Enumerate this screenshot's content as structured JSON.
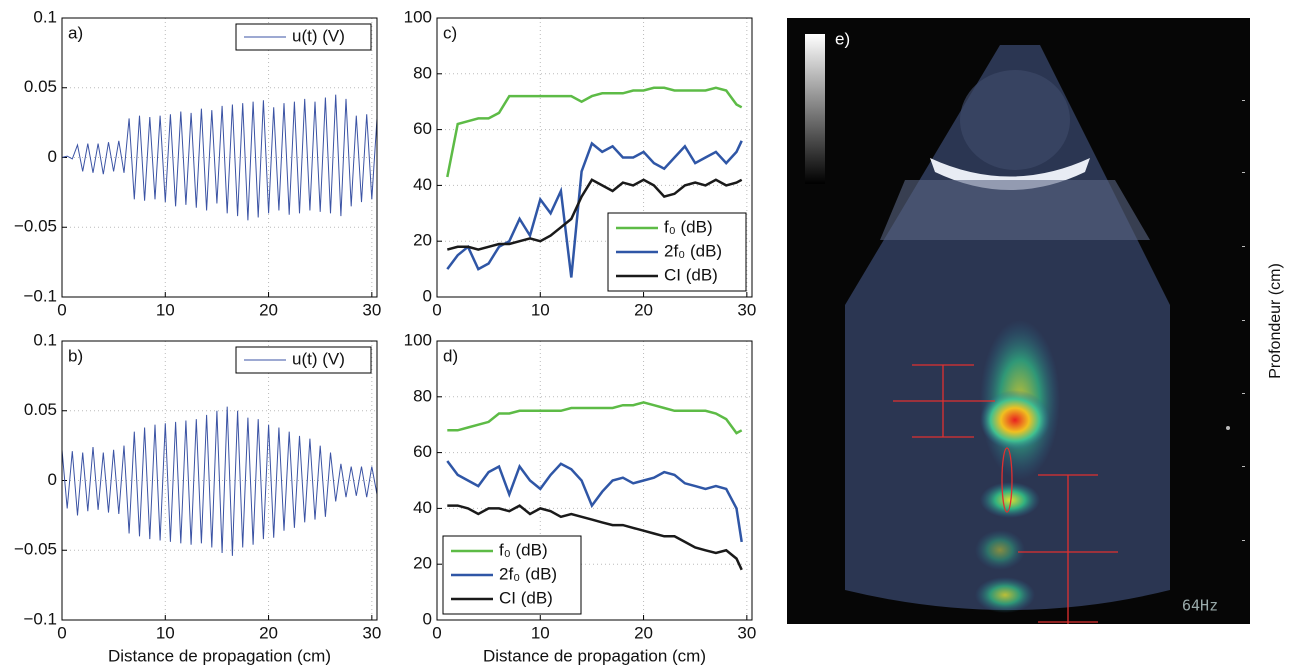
{
  "chart_data": [
    {
      "type": "line",
      "label": "a)",
      "xlim": [
        0,
        30.5
      ],
      "xticks": [
        0,
        10,
        20,
        30
      ],
      "ylim": [
        -0.1,
        0.1
      ],
      "yticks": [
        {
          "value": -0.1,
          "label": "−0.1"
        },
        {
          "value": -0.05,
          "label": "−0.05"
        },
        0,
        0.05,
        0.1
      ],
      "grid": true,
      "legend": "upper right",
      "x": [
        0,
        0.5,
        1,
        1.5,
        2,
        2.5,
        3,
        3.5,
        4,
        4.5,
        5,
        5.5,
        6,
        6.5,
        7,
        7.5,
        8,
        8.5,
        9,
        9.5,
        10,
        10.5,
        11,
        11.5,
        12,
        12.5,
        13,
        13.5,
        14,
        14.5,
        15,
        15.5,
        16,
        16.5,
        17,
        17.5,
        18,
        18.5,
        19,
        19.5,
        20,
        20.5,
        21,
        21.5,
        22,
        22.5,
        23,
        23.5,
        24,
        24.5,
        25,
        25.5,
        26,
        26.5,
        27,
        27.5,
        28,
        28.5,
        29,
        29.5,
        30,
        30.5
      ],
      "series": [
        {
          "name": "u(t) (V)",
          "color": "#3b53a4",
          "values": [
            0,
            0.001,
            -0.001,
            0.009,
            -0.01,
            0.01,
            -0.011,
            0.01,
            -0.012,
            0.011,
            -0.01,
            0.012,
            -0.011,
            0.028,
            -0.03,
            0.03,
            -0.031,
            0.029,
            -0.03,
            0.03,
            -0.032,
            0.031,
            -0.035,
            0.033,
            -0.034,
            0.032,
            -0.036,
            0.035,
            -0.038,
            0.034,
            -0.033,
            0.037,
            -0.04,
            0.038,
            -0.042,
            0.039,
            -0.045,
            0.04,
            -0.043,
            0.041,
            -0.04,
            0.036,
            -0.038,
            0.039,
            -0.041,
            0.04,
            -0.04,
            0.042,
            -0.038,
            0.04,
            -0.039,
            0.043,
            -0.04,
            0.045,
            -0.042,
            0.042,
            -0.035,
            0.03,
            -0.032,
            0.031,
            -0.03,
            0.028
          ]
        }
      ]
    },
    {
      "type": "line",
      "label": "b)",
      "xlabel": "Distance de propagation (cm)",
      "xlim": [
        0,
        30.5
      ],
      "xticks": [
        0,
        10,
        20,
        30
      ],
      "ylim": [
        -0.1,
        0.1
      ],
      "yticks": [
        {
          "value": -0.1,
          "label": "−0.1"
        },
        {
          "value": -0.05,
          "label": "−0.05"
        },
        0,
        0.05,
        0.1
      ],
      "grid": true,
      "legend": "upper right",
      "x": [
        0,
        0.5,
        1,
        1.5,
        2,
        2.5,
        3,
        3.5,
        4,
        4.5,
        5,
        5.5,
        6,
        6.5,
        7,
        7.5,
        8,
        8.5,
        9,
        9.5,
        10,
        10.5,
        11,
        11.5,
        12,
        12.5,
        13,
        13.5,
        14,
        14.5,
        15,
        15.5,
        16,
        16.5,
        17,
        17.5,
        18,
        18.5,
        19,
        19.5,
        20,
        20.5,
        21,
        21.5,
        22,
        22.5,
        23,
        23.5,
        24,
        24.5,
        25,
        25.5,
        26,
        26.5,
        27,
        27.5,
        28,
        28.5,
        29,
        29.5,
        30,
        30.5
      ],
      "series": [
        {
          "name": "u(t) (V)",
          "color": "#3b53a4",
          "values": [
            0.022,
            -0.02,
            0.021,
            -0.025,
            0.02,
            -0.022,
            0.024,
            -0.021,
            0.02,
            -0.023,
            0.022,
            -0.024,
            0.025,
            -0.038,
            0.035,
            -0.04,
            0.038,
            -0.042,
            0.04,
            -0.043,
            0.041,
            -0.044,
            0.042,
            -0.045,
            0.043,
            -0.046,
            0.044,
            -0.045,
            0.047,
            -0.048,
            0.05,
            -0.052,
            0.053,
            -0.054,
            0.05,
            -0.048,
            0.045,
            -0.046,
            0.044,
            -0.042,
            0.04,
            -0.041,
            0.038,
            -0.036,
            0.035,
            -0.034,
            0.032,
            -0.03,
            0.03,
            -0.028,
            0.025,
            -0.026,
            0.02,
            -0.015,
            0.012,
            -0.012,
            0.01,
            -0.011,
            0.01,
            -0.012,
            0.01,
            -0.01
          ]
        }
      ]
    },
    {
      "type": "line",
      "label": "c)",
      "xlim": [
        0,
        30.5
      ],
      "xticks": [
        0,
        10,
        20,
        30
      ],
      "ylim": [
        0,
        100
      ],
      "yticks": [
        0,
        20,
        40,
        60,
        80,
        100
      ],
      "grid": true,
      "legend": "lower right",
      "x": [
        1,
        2,
        3,
        4,
        5,
        6,
        7,
        8,
        9,
        10,
        11,
        12,
        13,
        14,
        15,
        16,
        17,
        18,
        19,
        20,
        21,
        22,
        23,
        24,
        25,
        26,
        27,
        28,
        29,
        29.5
      ],
      "series": [
        {
          "name": "f₀ (dB)",
          "color": "#5dbb46",
          "values": [
            43,
            62,
            63,
            64,
            64,
            66,
            72,
            72,
            72,
            72,
            72,
            72,
            72,
            70,
            72,
            73,
            73,
            73,
            74,
            74,
            75,
            75,
            74,
            74,
            74,
            74,
            75,
            74,
            69,
            68
          ]
        },
        {
          "name": "2f₀ (dB)",
          "color": "#2f56a6",
          "values": [
            10,
            15,
            18,
            10,
            12,
            18,
            20,
            28,
            22,
            35,
            30,
            38,
            7,
            45,
            55,
            52,
            54,
            50,
            50,
            52,
            48,
            46,
            50,
            54,
            48,
            50,
            52,
            48,
            52,
            56
          ]
        },
        {
          "name": "CI (dB)",
          "color": "#1a1a1a",
          "values": [
            17,
            18,
            18,
            17,
            18,
            19,
            19,
            20,
            21,
            20,
            22,
            25,
            28,
            36,
            42,
            40,
            38,
            41,
            40,
            42,
            40,
            36,
            37,
            40,
            41,
            40,
            42,
            40,
            41,
            42
          ]
        }
      ]
    },
    {
      "type": "line",
      "label": "d)",
      "xlabel": "Distance de propagation (cm)",
      "xlim": [
        0,
        30.5
      ],
      "xticks": [
        0,
        10,
        20,
        30
      ],
      "ylim": [
        0,
        100
      ],
      "yticks": [
        0,
        20,
        40,
        60,
        80,
        100
      ],
      "grid": true,
      "legend": "lower left",
      "x": [
        1,
        2,
        3,
        4,
        5,
        6,
        7,
        8,
        9,
        10,
        11,
        12,
        13,
        14,
        15,
        16,
        17,
        18,
        19,
        20,
        21,
        22,
        23,
        24,
        25,
        26,
        27,
        28,
        29,
        29.5
      ],
      "series": [
        {
          "name": "f₀ (dB)",
          "color": "#5dbb46",
          "values": [
            68,
            68,
            69,
            70,
            71,
            74,
            74,
            75,
            75,
            75,
            75,
            75,
            76,
            76,
            76,
            76,
            76,
            77,
            77,
            78,
            77,
            76,
            75,
            75,
            75,
            75,
            74,
            72,
            67,
            68
          ]
        },
        {
          "name": "2f₀ (dB)",
          "color": "#2f56a6",
          "values": [
            57,
            52,
            50,
            48,
            53,
            55,
            45,
            55,
            50,
            47,
            52,
            56,
            54,
            50,
            41,
            46,
            50,
            51,
            49,
            50,
            51,
            53,
            52,
            49,
            48,
            47,
            48,
            47,
            40,
            28
          ]
        },
        {
          "name": "CI (dB)",
          "color": "#1a1a1a",
          "values": [
            41,
            41,
            40,
            38,
            40,
            40,
            39,
            41,
            38,
            40,
            39,
            37,
            38,
            37,
            36,
            35,
            34,
            34,
            33,
            32,
            31,
            30,
            30,
            28,
            26,
            25,
            24,
            25,
            22,
            18
          ]
        }
      ]
    },
    {
      "type": "image",
      "label": "e)",
      "annotation": "64Hz",
      "ylabel": "Profondeur (cm)"
    }
  ]
}
